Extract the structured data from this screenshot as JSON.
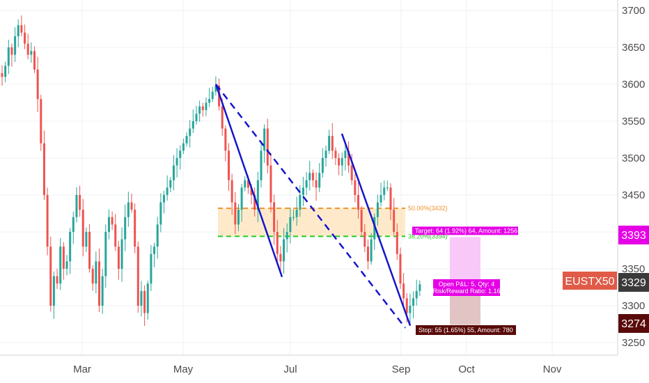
{
  "chart_data": {
    "type": "candlestick",
    "symbol": "EUSTX50",
    "x_tick_labels": [
      "Mar",
      "May",
      "Jul",
      "Sep",
      "Oct",
      "Nov"
    ],
    "y_ticks": [
      3250,
      3300,
      3350,
      3400,
      3450,
      3500,
      3550,
      3600,
      3650,
      3700
    ],
    "ylim": [
      3240,
      3715
    ],
    "grid": true,
    "price_badges": [
      {
        "value": "3393",
        "color": "#e600e6"
      },
      {
        "value": "3329",
        "color": "#3a3a3a"
      },
      {
        "value": "3274",
        "color": "#5a0a0a"
      }
    ],
    "symbol_color": "#e05a47",
    "colors": {
      "up": "#26a69a",
      "down": "#ef5350",
      "trend": "#1515cc",
      "fib50": "#f0932b",
      "fib38": "#22cc22",
      "zone": "#fde3b8",
      "target": "#f8c8f8",
      "stop": "#e3c4c4"
    },
    "fib_levels": [
      {
        "label": "50.00%(3432)",
        "value": 3432
      },
      {
        "label": "38.20%(3394)",
        "value": 3394
      }
    ],
    "trendlines": [
      {
        "style": "solid",
        "from": [
          3600
        ],
        "to": [
          3339
        ]
      },
      {
        "style": "dashed",
        "from": [
          3600
        ],
        "to": [
          3270
        ]
      },
      {
        "style": "solid",
        "from": [
          3533
        ],
        "to": [
          3273
        ]
      }
    ],
    "position": {
      "target_text": "Target: 64 (1.92%) 64, Amount: 1256",
      "open_pl_text": "Open P&L: 5, Qty: 4",
      "risk_reward_text": "Risk/Reward Ratio: 1.16",
      "stop_text": "Stop: 55 (1.65%) 55, Amount: 780",
      "entry": 3329,
      "target": 3393,
      "stop": 3274
    },
    "closes": [
      3610,
      3625,
      3650,
      3640,
      3665,
      3680,
      3670,
      3655,
      3640,
      3645,
      3620,
      3580,
      3520,
      3450,
      3380,
      3300,
      3340,
      3330,
      3380,
      3350,
      3360,
      3400,
      3420,
      3450,
      3430,
      3380,
      3400,
      3350,
      3330,
      3360,
      3300,
      3340,
      3400,
      3420,
      3410,
      3380,
      3350,
      3390,
      3420,
      3440,
      3430,
      3380,
      3300,
      3320,
      3290,
      3330,
      3370,
      3380,
      3410,
      3440,
      3450,
      3460,
      3470,
      3490,
      3500,
      3510,
      3520,
      3530,
      3540,
      3550,
      3560,
      3570,
      3565,
      3575,
      3580,
      3590,
      3598,
      3570,
      3540,
      3510,
      3470,
      3440,
      3410,
      3430,
      3460,
      3470,
      3460,
      3450,
      3430,
      3470,
      3510,
      3540,
      3490,
      3440,
      3400,
      3370,
      3360,
      3390,
      3400,
      3420,
      3420,
      3430,
      3450,
      3460,
      3470,
      3480,
      3470,
      3460,
      3480,
      3500,
      3510,
      3530,
      3510,
      3500,
      3490,
      3500,
      3510,
      3490,
      3470,
      3450,
      3430,
      3400,
      3380,
      3360,
      3390,
      3420,
      3440,
      3450,
      3460,
      3460,
      3430,
      3400,
      3370,
      3330,
      3310,
      3290,
      3300,
      3310,
      3320,
      3329
    ]
  }
}
